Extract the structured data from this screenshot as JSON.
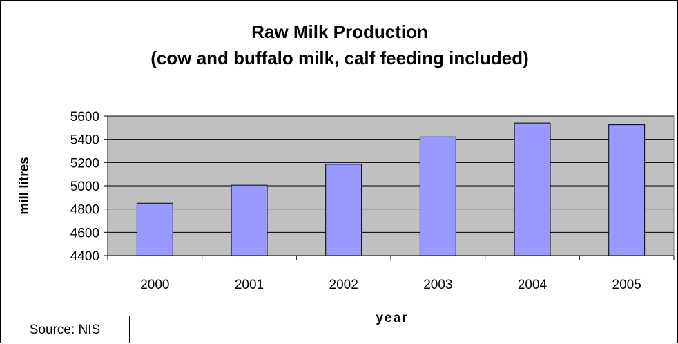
{
  "chart_data": {
    "type": "bar",
    "title": "Raw Milk Production",
    "subtitle": "(cow and buffalo milk, calf feeding included)",
    "xlabel": "year",
    "ylabel": "mill litres",
    "categories": [
      "2000",
      "2001",
      "2002",
      "2003",
      "2004",
      "2005"
    ],
    "values": [
      4850,
      5005,
      5185,
      5420,
      5540,
      5525
    ],
    "ylim": [
      4400,
      5600
    ],
    "yticks": [
      4400,
      4600,
      4800,
      5000,
      5200,
      5400,
      5600
    ],
    "grid": true,
    "legend": "none",
    "colors": {
      "bar": "#9999ff",
      "plot_bg": "#c0c0c0",
      "grid": "#000000"
    }
  },
  "source_note": "Source: NIS"
}
